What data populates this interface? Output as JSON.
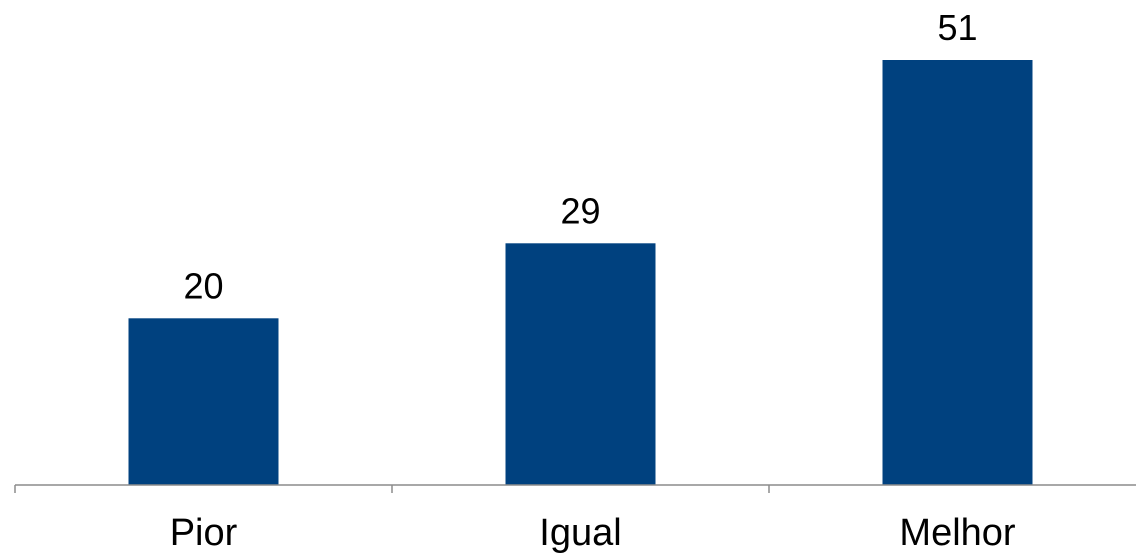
{
  "chart_data": {
    "type": "bar",
    "categories": [
      "Pior",
      "Igual",
      "Melhor"
    ],
    "values": [
      20,
      29,
      51
    ],
    "data_labels": [
      "20",
      "29",
      "51"
    ],
    "title": "",
    "xlabel": "",
    "ylabel": "",
    "ylim": [
      0,
      58
    ],
    "grid": false,
    "legend": "none",
    "bar_color": "#00417f"
  }
}
